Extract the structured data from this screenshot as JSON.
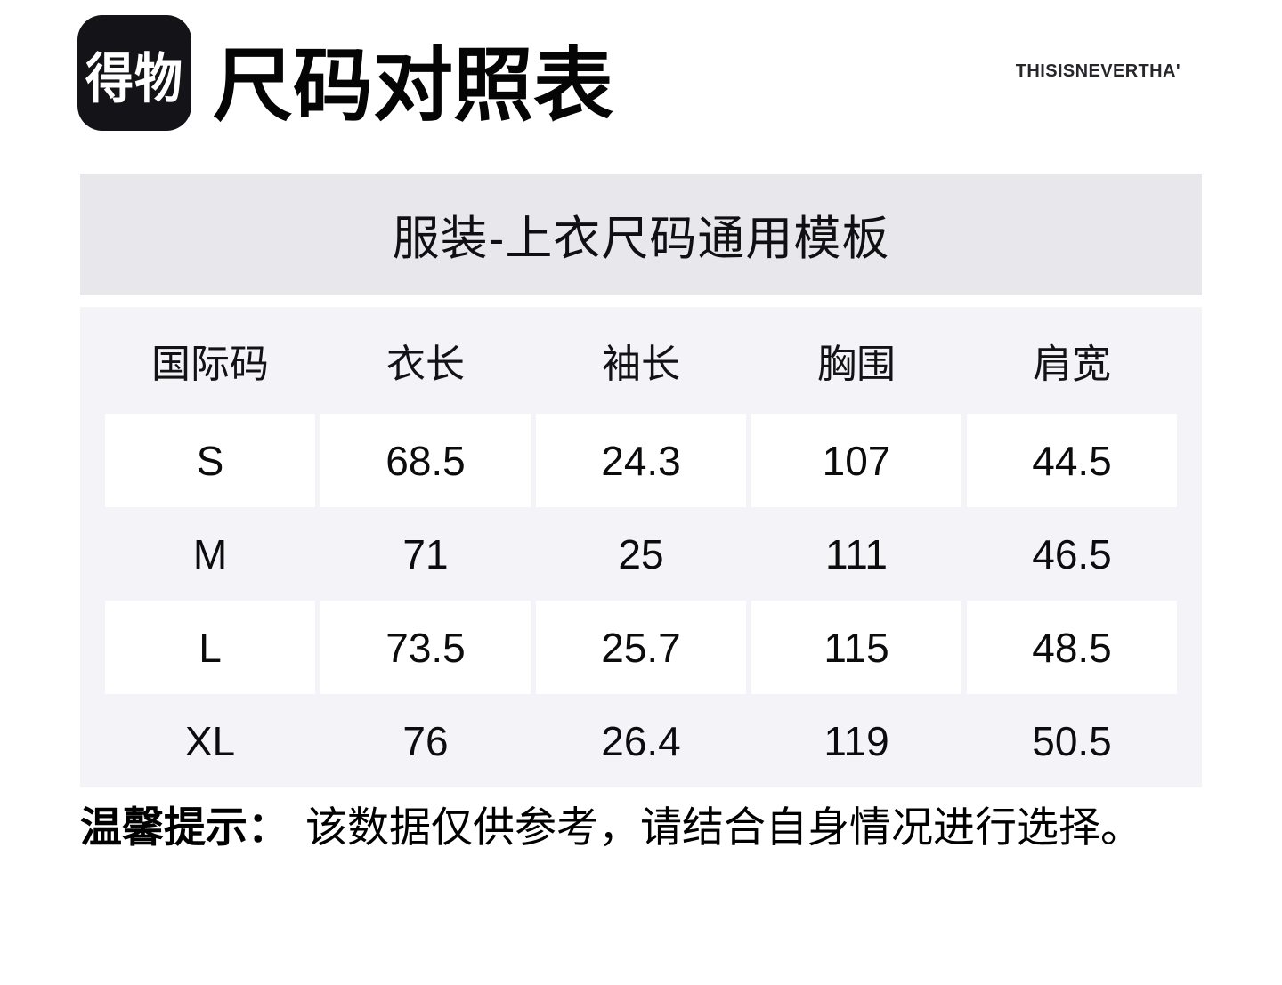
{
  "header": {
    "logo_text": "得物",
    "title": "尺码对照表",
    "brand": "THISISNEVERTHA'"
  },
  "banner": {
    "text": "服装-上衣尺码通用模板",
    "bg_color": "#e8e7ec"
  },
  "chart_data": {
    "type": "table",
    "title": "服装-上衣尺码通用模板",
    "columns": [
      "国际码",
      "衣长",
      "袖长",
      "胸围",
      "肩宽"
    ],
    "rows": [
      [
        "S",
        "68.5",
        "24.3",
        "107",
        "44.5"
      ],
      [
        "M",
        "71",
        "25",
        "111",
        "46.5"
      ],
      [
        "L",
        "73.5",
        "25.7",
        "115",
        "48.5"
      ],
      [
        "XL",
        "76",
        "26.4",
        "119",
        "50.5"
      ]
    ],
    "layout_hints": {
      "table_bg": "#f4f4f8",
      "highlight_row_bg": "#ffffff",
      "highlighted_rows": [
        "S",
        "L"
      ]
    }
  },
  "footnote": {
    "label": "温馨提示：",
    "text": "该数据仅供参考，请结合自身情况进行选择。"
  },
  "colors": {
    "page_bg": "#ffffff",
    "logo_bg": "#131318",
    "text": "#0c0c0e"
  }
}
